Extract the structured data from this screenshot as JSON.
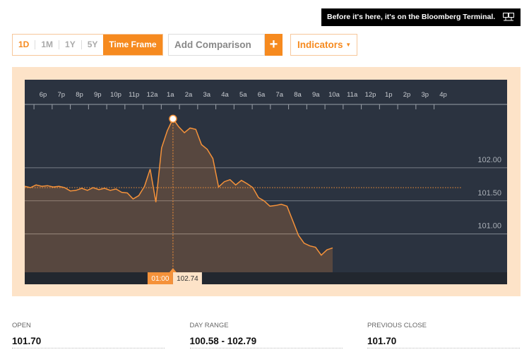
{
  "banner": "Before it's here, it's on the Bloomberg Terminal.",
  "controls": {
    "ranges": [
      "1D",
      "1M",
      "1Y",
      "5Y",
      "Time Frame"
    ],
    "comparison": "Add Comparison",
    "add": "+",
    "indicators": "Indicators"
  },
  "chart_data": {
    "type": "line",
    "xticks": [
      "6p",
      "7p",
      "8p",
      "9p",
      "10p",
      "11p",
      "12a",
      "1a",
      "2a",
      "3a",
      "4a",
      "5a",
      "6a",
      "7a",
      "8a",
      "9a",
      "10a",
      "11a",
      "12p",
      "1p",
      "2p",
      "3p",
      "4p"
    ],
    "series": [
      {
        "color": "#f5923a",
        "values": [
          101.72,
          101.7,
          101.74,
          101.72,
          101.73,
          101.71,
          101.72,
          101.7,
          101.65,
          101.66,
          101.69,
          101.66,
          101.7,
          101.67,
          101.69,
          101.66,
          101.68,
          101.63,
          101.62,
          101.53,
          101.58,
          101.72,
          101.98,
          101.48,
          102.3,
          102.56,
          102.74,
          102.62,
          102.53,
          102.6,
          102.58,
          102.35,
          102.28,
          102.14,
          101.71,
          101.79,
          101.82,
          101.74,
          101.81,
          101.76,
          101.7,
          101.55,
          101.5,
          101.42,
          101.43,
          101.45,
          101.42,
          101.2,
          100.98,
          100.86,
          100.82,
          100.8,
          100.68,
          100.76,
          100.79
        ]
      }
    ],
    "ylim": [
      100.4,
      103.0
    ],
    "yticks": [
      {
        "value": 101,
        "label": "101.00"
      },
      {
        "value": 101.5,
        "label": "101.50"
      },
      {
        "value": 102,
        "label": "102.00"
      }
    ],
    "reference_line": 101.7,
    "crosshair": {
      "time": "01:00",
      "value": 102.74
    }
  },
  "stats": [
    {
      "label": "OPEN",
      "value": "101.70"
    },
    {
      "label": "DAY RANGE",
      "value": "100.58 - 102.79"
    },
    {
      "label": "PREVIOUS CLOSE",
      "value": "101.70"
    }
  ]
}
